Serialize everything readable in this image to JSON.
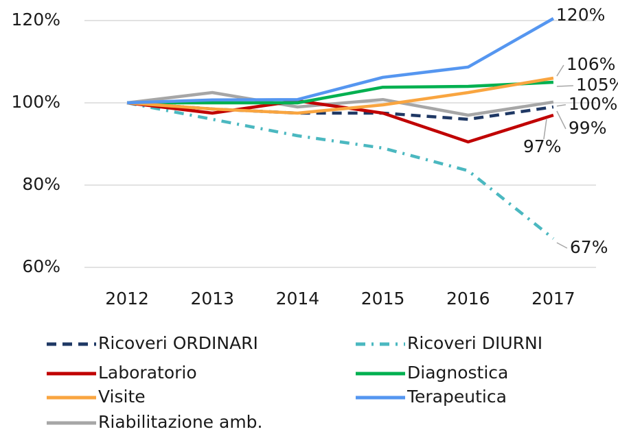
{
  "chart_data": {
    "type": "line",
    "categories": [
      "2012",
      "2013",
      "2014",
      "2015",
      "2016",
      "2017"
    ],
    "series": [
      {
        "name": "Ricoveri ORDINARI",
        "color": "#1f3864",
        "values": [
          100,
          98.5,
          97.5,
          97.5,
          96,
          99
        ],
        "value_labels": [
          null,
          null,
          null,
          null,
          null,
          "99%"
        ]
      },
      {
        "name": "Ricoveri DIURNI",
        "color": "#4bb8c0",
        "values": [
          100,
          96,
          92,
          89,
          83.5,
          67
        ],
        "value_labels": [
          null,
          null,
          null,
          null,
          null,
          "67%"
        ]
      },
      {
        "name": "Laboratorio",
        "color": "#c00000",
        "values": [
          100,
          97.5,
          100.5,
          97.5,
          90.5,
          97
        ],
        "value_labels": [
          null,
          null,
          null,
          null,
          null,
          "97%"
        ]
      },
      {
        "name": "Diagnostica",
        "color": "#00b050",
        "values": [
          100,
          100,
          100,
          103.8,
          104,
          105
        ],
        "value_labels": [
          null,
          null,
          null,
          null,
          null,
          "105%"
        ]
      },
      {
        "name": "Visite",
        "color": "#f9a540",
        "values": [
          100,
          98.5,
          97.5,
          99.5,
          102.5,
          106
        ],
        "value_labels": [
          null,
          null,
          null,
          null,
          null,
          "106%"
        ]
      },
      {
        "name": "Terapeutica",
        "color": "#5596f0",
        "values": [
          100,
          100.7,
          100.8,
          106.2,
          108.7,
          120.5
        ],
        "value_labels": [
          null,
          null,
          null,
          null,
          null,
          "120%"
        ]
      },
      {
        "name": "Riabilitazione amb.",
        "color": "#a6a6a6",
        "values": [
          100,
          102.5,
          99,
          100.8,
          97,
          100.2
        ],
        "value_labels": [
          null,
          null,
          null,
          null,
          null,
          "100%"
        ]
      }
    ],
    "ylim": [
      60,
      120
    ],
    "yticks": [
      {
        "value": 60,
        "label": "60%"
      },
      {
        "value": 80,
        "label": "80%"
      },
      {
        "value": 100,
        "label": "100%"
      },
      {
        "value": 120,
        "label": "120%"
      }
    ],
    "grid": true,
    "legend": "bottom"
  }
}
